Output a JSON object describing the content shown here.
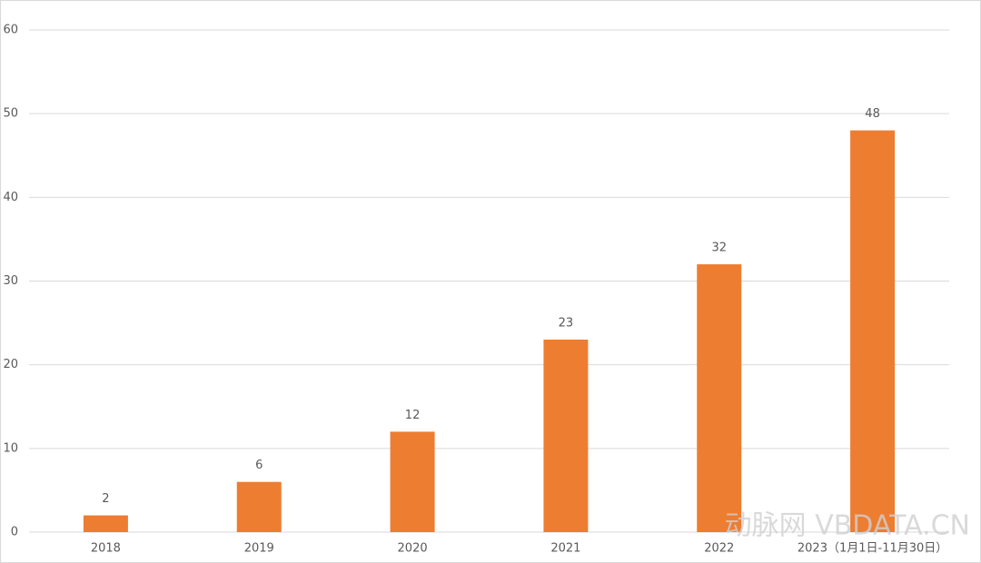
{
  "chart_data": {
    "type": "bar",
    "categories": [
      "2018",
      "2019",
      "2020",
      "2021",
      "2022",
      "2023（1月1日-11月30日）"
    ],
    "values": [
      2,
      6,
      12,
      23,
      32,
      48
    ],
    "color": "#ed7d31",
    "ylim": [
      0,
      60
    ],
    "yticks": [
      0,
      10,
      20,
      30,
      40,
      50,
      60
    ],
    "grid": true,
    "data_labels": true,
    "watermark": "动脉网 VBDATA.CN"
  }
}
